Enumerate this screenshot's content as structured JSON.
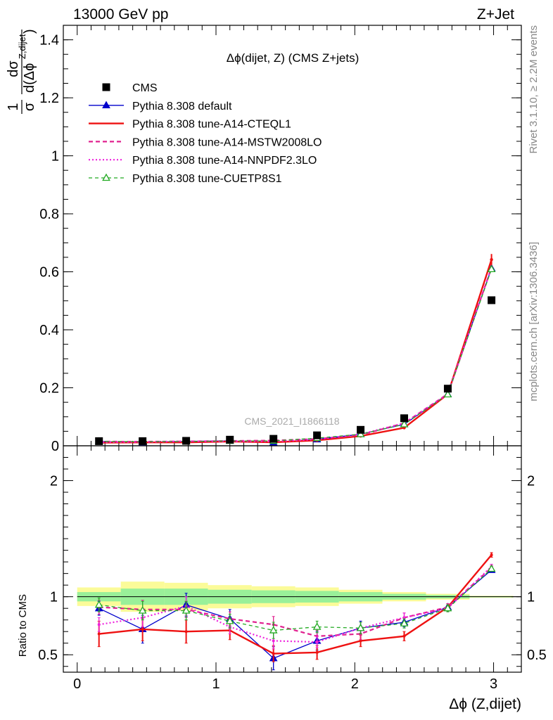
{
  "header": {
    "left": "13000 GeV pp",
    "right": "Z+Jet",
    "side_top": "Rivet 3.1.10, ≥ 2.2M events",
    "side_bottom": "mcplots.cern.ch [arXiv:1306.3436]",
    "watermark": "CMS_2021_I1866118"
  },
  "colors": {
    "cms": "#000000",
    "default": "#0000cc",
    "cteql1": "#ee1111",
    "mstw": "#e0208f",
    "nnpdf": "#ee22dd",
    "cuetp8s1": "#22aa22",
    "band_inner": "#99f099",
    "band_outer": "#fbfb99"
  },
  "chart_data": [
    {
      "type": "scatter",
      "panel": "main",
      "title": "Δϕ(dijet, Z) (CMS Z+jets)",
      "ylabel": "1/σ dσ/d(Δϕ^{Z,dijet})",
      "xlim": [
        -0.1,
        3.2
      ],
      "ylim": [
        0,
        1.45
      ],
      "yticks": [
        0,
        0.2,
        0.4,
        0.6,
        0.8,
        1,
        1.2,
        1.4
      ],
      "ytick_labels": [
        "0",
        "0.2",
        "0.4",
        "0.6",
        "0.8",
        "1",
        "1.2",
        "1.4"
      ],
      "x": [
        0.157,
        0.471,
        0.785,
        1.1,
        1.414,
        1.728,
        2.042,
        2.356,
        2.67,
        2.985
      ],
      "legend": [
        {
          "key": "cms",
          "label": "CMS",
          "style": "square"
        },
        {
          "key": "default",
          "label": "Pythia 8.308 default",
          "style": "line-triangle"
        },
        {
          "key": "cteql1",
          "label": "Pythia 8.308 tune-A14-CTEQL1",
          "style": "line"
        },
        {
          "key": "mstw",
          "label": "Pythia 8.308 tune-A14-MSTW2008LO",
          "style": "dashed"
        },
        {
          "key": "nnpdf",
          "label": "Pythia 8.308 tune-A14-NNPDF2.3LO",
          "style": "dotted"
        },
        {
          "key": "cuetp8s1",
          "label": "Pythia 8.308 tune-CUETP8S1",
          "style": "dashed-open-triangle"
        }
      ],
      "series": [
        {
          "key": "cms",
          "values": [
            0.016,
            0.016,
            0.017,
            0.021,
            0.024,
            0.036,
            0.055,
            0.095,
            0.197,
            0.502
          ]
        },
        {
          "key": "default",
          "values": [
            0.0145,
            0.0115,
            0.0155,
            0.017,
            0.0112,
            0.022,
            0.04,
            0.074,
            0.178,
            0.612
          ]
        },
        {
          "key": "cteql1",
          "values": [
            0.0108,
            0.0116,
            0.0118,
            0.0148,
            0.0121,
            0.0187,
            0.0335,
            0.062,
            0.178,
            0.642
          ]
        },
        {
          "key": "mstw",
          "values": [
            0.0146,
            0.0143,
            0.0151,
            0.0168,
            0.0181,
            0.0238,
            0.0372,
            0.078,
            0.179,
            0.614
          ]
        },
        {
          "key": "nnpdf",
          "values": [
            0.0121,
            0.0131,
            0.0156,
            0.0155,
            0.0148,
            0.022,
            0.04,
            0.078,
            0.178,
            0.615
          ]
        },
        {
          "key": "cuetp8s1",
          "values": [
            0.0148,
            0.0141,
            0.0148,
            0.0166,
            0.0168,
            0.0264,
            0.04,
            0.074,
            0.177,
            0.609
          ]
        }
      ]
    },
    {
      "type": "line",
      "panel": "ratio",
      "ylabel": "Ratio to CMS",
      "xlabel": "Δϕ (Z,dijet)",
      "xlim": [
        -0.1,
        3.2
      ],
      "ylim": [
        0.35,
        2.3
      ],
      "xticks": [
        0,
        1,
        2,
        3
      ],
      "xtick_labels": [
        "0",
        "1",
        "2",
        "3"
      ],
      "yticks": [
        0.5,
        1,
        2
      ],
      "ytick_labels": [
        "0.5",
        "1",
        "2"
      ],
      "x": [
        0.157,
        0.471,
        0.785,
        1.1,
        1.414,
        1.728,
        2.042,
        2.356,
        2.67,
        2.985
      ],
      "bin_edges": [
        0.0,
        0.314,
        0.628,
        0.942,
        1.257,
        1.571,
        1.885,
        2.199,
        2.513,
        2.827,
        3.142
      ],
      "band_inner_halfwidth": [
        0.04,
        0.07,
        0.07,
        0.06,
        0.055,
        0.05,
        0.04,
        0.025,
        0.015,
        0.005
      ],
      "band_outer_halfwidth": [
        0.08,
        0.13,
        0.12,
        0.1,
        0.09,
        0.08,
        0.06,
        0.04,
        0.025,
        0.008
      ],
      "series": [
        {
          "key": "default",
          "values": [
            0.9,
            0.72,
            0.93,
            0.81,
            0.47,
            0.62,
            0.73,
            0.78,
            0.91,
            1.23
          ],
          "errors": [
            0.06,
            0.12,
            0.1,
            0.08,
            0.1,
            0.08,
            0.06,
            0.04,
            0.03,
            0.02
          ]
        },
        {
          "key": "cteql1",
          "values": [
            0.68,
            0.72,
            0.7,
            0.71,
            0.51,
            0.52,
            0.62,
            0.66,
            0.91,
            1.36
          ],
          "errors": [
            0.11,
            0.1,
            0.1,
            0.08,
            0.07,
            0.06,
            0.05,
            0.04,
            0.03,
            0.02
          ]
        },
        {
          "key": "mstw",
          "values": [
            0.91,
            0.89,
            0.89,
            0.81,
            0.76,
            0.66,
            0.68,
            0.82,
            0.91,
            1.25
          ],
          "errors": [
            0.06,
            0.08,
            0.07,
            0.06,
            0.07,
            0.05,
            0.05,
            0.04,
            0.03,
            0.02
          ]
        },
        {
          "key": "nnpdf",
          "values": [
            0.76,
            0.82,
            0.92,
            0.74,
            0.62,
            0.61,
            0.73,
            0.82,
            0.9,
            1.26
          ],
          "errors": [
            0.06,
            0.08,
            0.08,
            0.06,
            0.07,
            0.05,
            0.05,
            0.04,
            0.03,
            0.02
          ]
        },
        {
          "key": "cuetp8s1",
          "values": [
            0.93,
            0.88,
            0.88,
            0.79,
            0.71,
            0.74,
            0.73,
            0.77,
            0.9,
            1.24
          ],
          "errors": [
            0.06,
            0.08,
            0.08,
            0.06,
            0.07,
            0.05,
            0.05,
            0.04,
            0.03,
            0.02
          ]
        }
      ]
    }
  ]
}
